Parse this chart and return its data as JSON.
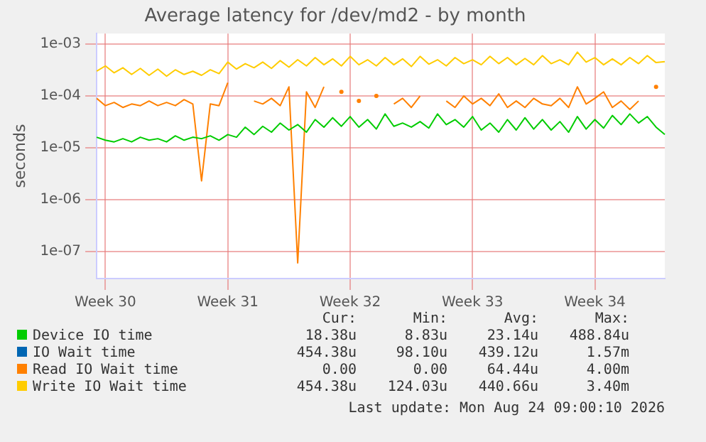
{
  "chart_data": {
    "type": "line",
    "title": "Average latency for /dev/md2 - by month",
    "ylabel": "seconds",
    "categories": [
      null,
      "Week 30",
      null,
      null,
      null,
      null,
      null,
      null,
      null,
      null,
      null,
      null,
      null,
      null,
      null,
      "Week 31",
      null,
      null,
      null,
      null,
      null,
      null,
      null,
      null,
      null,
      null,
      null,
      null,
      null,
      "Week 32",
      null,
      null,
      null,
      null,
      null,
      null,
      null,
      null,
      null,
      null,
      null,
      null,
      null,
      "Week 33",
      null,
      null,
      null,
      null,
      null,
      null,
      null,
      null,
      null,
      null,
      null,
      null,
      null,
      "Week 34",
      null,
      null,
      null,
      null,
      null,
      null,
      null,
      null
    ],
    "series": [
      {
        "name": "Device IO time",
        "color": "#00cc00",
        "values": [
          1.6e-05,
          1.4e-05,
          1.3e-05,
          1.5e-05,
          1.3e-05,
          1.6e-05,
          1.4e-05,
          1.5e-05,
          1.3e-05,
          1.7e-05,
          1.4e-05,
          1.6e-05,
          1.5e-05,
          1.7e-05,
          1.4e-05,
          1.8e-05,
          1.6e-05,
          2.5e-05,
          1.8e-05,
          2.6e-05,
          2e-05,
          3e-05,
          2.2e-05,
          2.8e-05,
          2e-05,
          3.5e-05,
          2.5e-05,
          3.8e-05,
          2.6e-05,
          4e-05,
          2.5e-05,
          3.5e-05,
          2.3e-05,
          4.5e-05,
          2.6e-05,
          3e-05,
          2.5e-05,
          3.2e-05,
          2.4e-05,
          4.5e-05,
          2.8e-05,
          3.5e-05,
          2.5e-05,
          4e-05,
          2.2e-05,
          3e-05,
          2e-05,
          3.5e-05,
          2.2e-05,
          3.8e-05,
          2.3e-05,
          3.5e-05,
          2.2e-05,
          3.2e-05,
          2e-05,
          4e-05,
          2.3e-05,
          3.5e-05,
          2.4e-05,
          4.2e-05,
          2.8e-05,
          4.5e-05,
          3e-05,
          4e-05,
          2.5e-05,
          1.8e-05
        ]
      },
      {
        "name": "IO Wait time",
        "color": "#0066b3",
        "values": [
          null,
          null,
          null,
          null,
          null,
          null,
          null,
          null,
          null,
          null,
          null,
          null,
          null,
          null,
          null,
          null,
          null,
          null,
          null,
          null,
          null,
          null,
          null,
          null,
          null,
          null,
          null,
          null,
          null,
          null,
          null,
          null,
          null,
          null,
          null,
          null,
          null,
          null,
          null,
          null,
          null,
          null,
          null,
          null,
          null,
          null,
          null,
          null,
          null,
          null,
          null,
          null,
          null,
          null,
          null,
          null,
          null,
          null,
          null,
          null,
          null,
          null,
          null,
          null,
          null,
          null
        ]
      },
      {
        "name": "Read IO Wait time",
        "color": "#ff8000",
        "values": [
          9e-05,
          6.5e-05,
          7.5e-05,
          6e-05,
          7e-05,
          6.5e-05,
          8e-05,
          6.5e-05,
          7.5e-05,
          6.5e-05,
          8.5e-05,
          7e-05,
          2.3e-06,
          7e-05,
          6.5e-05,
          0.00018,
          null,
          null,
          8e-05,
          7e-05,
          9e-05,
          6.5e-05,
          0.00015,
          6e-08,
          0.00012,
          6e-05,
          0.00015,
          null,
          0.00012,
          null,
          8e-05,
          null,
          0.0001,
          null,
          7e-05,
          9e-05,
          6e-05,
          0.0001,
          null,
          null,
          8e-05,
          6e-05,
          0.0001,
          7e-05,
          9e-05,
          6.5e-05,
          0.00011,
          6e-05,
          8e-05,
          6e-05,
          9e-05,
          7e-05,
          6.5e-05,
          9e-05,
          6e-05,
          0.00015,
          7e-05,
          9e-05,
          0.00012,
          6e-05,
          8e-05,
          5.5e-05,
          8e-05,
          null,
          0.00015,
          null
        ]
      },
      {
        "name": "Write IO Wait time",
        "color": "#ffcc00",
        "values": [
          0.0003,
          0.00038,
          0.00028,
          0.00035,
          0.00026,
          0.00034,
          0.00025,
          0.00033,
          0.00024,
          0.00032,
          0.00026,
          0.0003,
          0.00025,
          0.00032,
          0.00027,
          0.00045,
          0.00033,
          0.00042,
          0.00035,
          0.00045,
          0.00034,
          0.00048,
          0.00036,
          0.0005,
          0.00038,
          0.00055,
          0.0004,
          0.00052,
          0.00038,
          0.00058,
          0.0004,
          0.0005,
          0.00038,
          0.00055,
          0.0004,
          0.00052,
          0.00037,
          0.00058,
          0.00041,
          0.0005,
          0.00038,
          0.00055,
          0.00042,
          0.0005,
          0.0004,
          0.00058,
          0.00042,
          0.00055,
          0.0004,
          0.00053,
          0.0004,
          0.0006,
          0.00042,
          0.0005,
          0.0004,
          0.0007,
          0.00045,
          0.00055,
          0.0004,
          0.00052,
          0.0004,
          0.00055,
          0.00042,
          0.0006,
          0.00044,
          0.00046
        ]
      }
    ],
    "ylim": [
      3e-08,
      0.0016
    ],
    "yticks": [
      {
        "value": 1e-07,
        "label": "1e-07"
      },
      {
        "value": 1e-06,
        "label": "1e-06"
      },
      {
        "value": 1e-05,
        "label": "1e-05"
      },
      {
        "value": 0.0001,
        "label": "1e-04"
      },
      {
        "value": 0.001,
        "label": "1e-03"
      }
    ],
    "log": "y",
    "grid": true,
    "legend": "bottom",
    "marker": "none",
    "line_style": "solid",
    "annotations": [
      "Cur:",
      "Min:",
      "Avg:",
      "Max:",
      "18.38u",
      "8.83u",
      "23.14u",
      "488.84u",
      "454.38u",
      "98.10u",
      "439.12u",
      "1.57m",
      "0.00",
      "0.00",
      "64.44u",
      "4.00m",
      "454.38u",
      "124.03u",
      "440.66u",
      "3.40m",
      "Last update: Mon Aug 24 09:00:10 2026"
    ]
  }
}
